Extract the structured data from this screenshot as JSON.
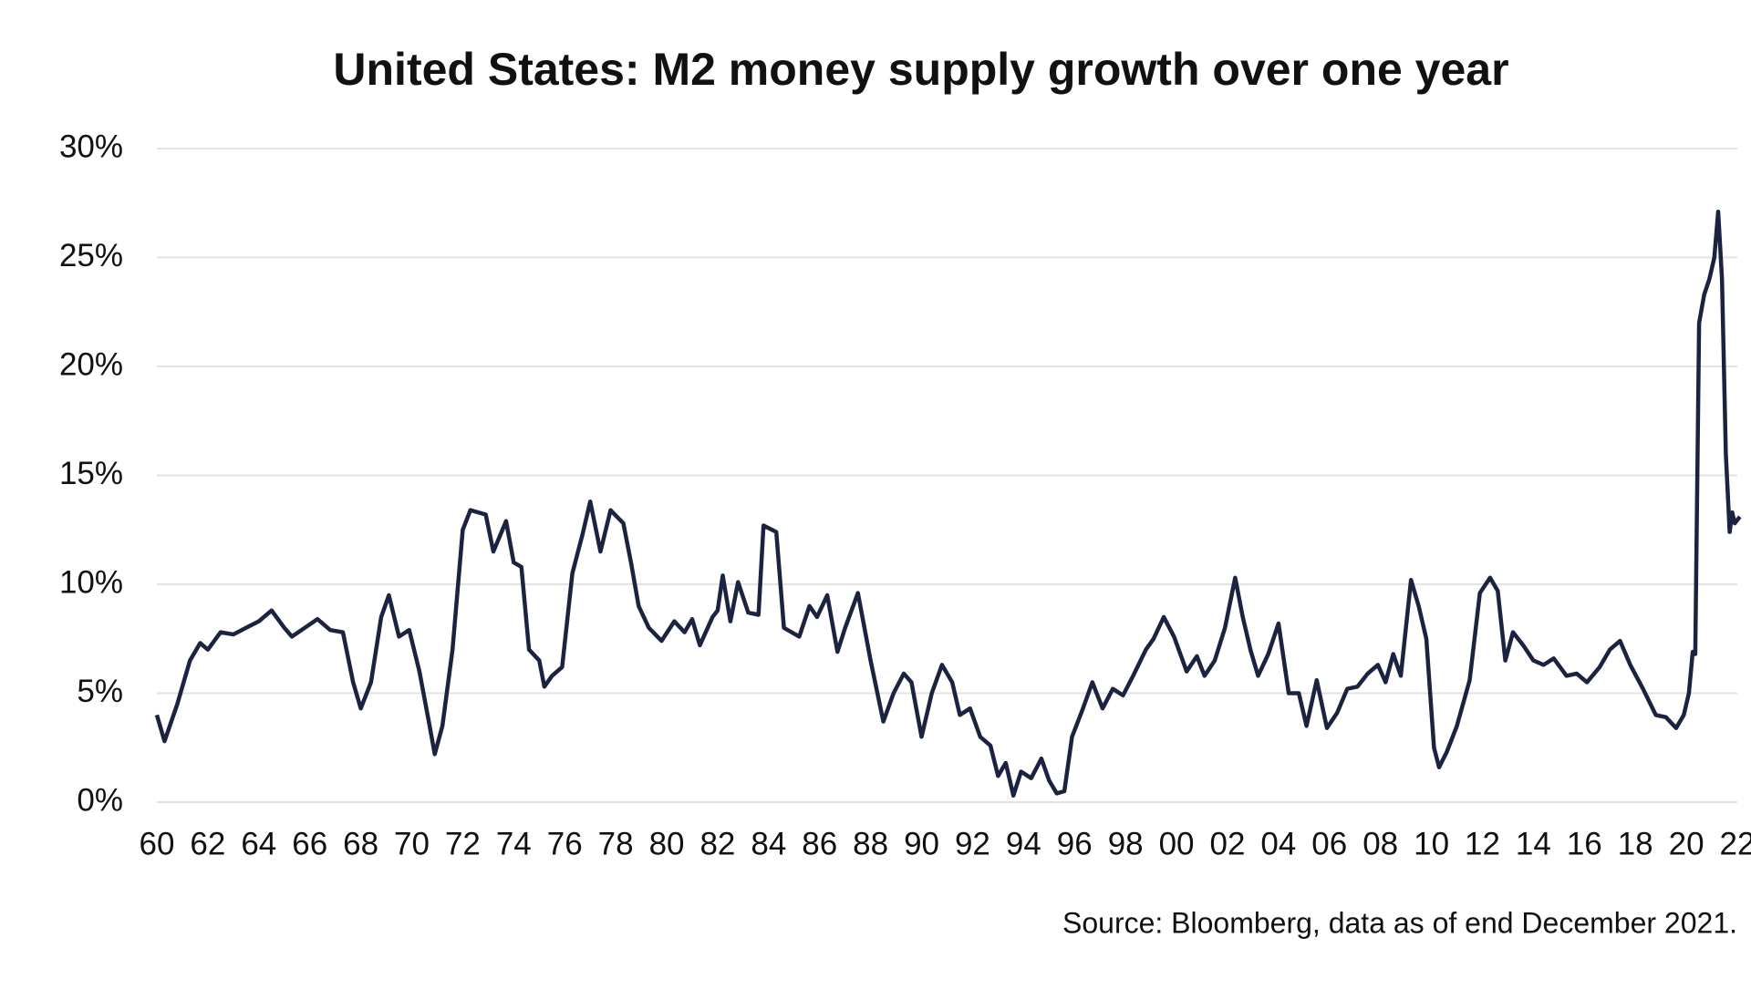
{
  "chart_data": {
    "type": "line",
    "title": "United States: M2 money supply growth over one year",
    "source": "Source: Bloomberg, data as of end December 2021.",
    "color": "#1c2340",
    "grid": true,
    "xlim": [
      1960,
      2022
    ],
    "ylim": [
      0,
      30
    ],
    "yticks": [
      {
        "value": 0,
        "label": "0%"
      },
      {
        "value": 5,
        "label": "5%"
      },
      {
        "value": 10,
        "label": "10%"
      },
      {
        "value": 15,
        "label": "15%"
      },
      {
        "value": 20,
        "label": "20%"
      },
      {
        "value": 25,
        "label": "25%"
      },
      {
        "value": 30,
        "label": "30%"
      }
    ],
    "xticks": [
      {
        "value": 1960,
        "label": "60"
      },
      {
        "value": 1962,
        "label": "62"
      },
      {
        "value": 1964,
        "label": "64"
      },
      {
        "value": 1966,
        "label": "66"
      },
      {
        "value": 1968,
        "label": "68"
      },
      {
        "value": 1970,
        "label": "70"
      },
      {
        "value": 1972,
        "label": "72"
      },
      {
        "value": 1974,
        "label": "74"
      },
      {
        "value": 1976,
        "label": "76"
      },
      {
        "value": 1978,
        "label": "78"
      },
      {
        "value": 1980,
        "label": "80"
      },
      {
        "value": 1982,
        "label": "82"
      },
      {
        "value": 1984,
        "label": "84"
      },
      {
        "value": 1986,
        "label": "86"
      },
      {
        "value": 1988,
        "label": "88"
      },
      {
        "value": 1990,
        "label": "90"
      },
      {
        "value": 1992,
        "label": "92"
      },
      {
        "value": 1994,
        "label": "94"
      },
      {
        "value": 1996,
        "label": "96"
      },
      {
        "value": 1998,
        "label": "98"
      },
      {
        "value": 2000,
        "label": "00"
      },
      {
        "value": 2002,
        "label": "02"
      },
      {
        "value": 2004,
        "label": "04"
      },
      {
        "value": 2006,
        "label": "06"
      },
      {
        "value": 2008,
        "label": "08"
      },
      {
        "value": 2010,
        "label": "10"
      },
      {
        "value": 2012,
        "label": "12"
      },
      {
        "value": 2014,
        "label": "14"
      },
      {
        "value": 2016,
        "label": "16"
      },
      {
        "value": 2018,
        "label": "18"
      },
      {
        "value": 2020,
        "label": "20"
      },
      {
        "value": 2022,
        "label": "22"
      }
    ],
    "x": [
      1960.0,
      1960.3,
      1960.8,
      1961.3,
      1961.7,
      1962.0,
      1962.5,
      1963.0,
      1963.5,
      1964.0,
      1964.5,
      1965.0,
      1965.3,
      1965.8,
      1966.3,
      1966.8,
      1967.3,
      1967.7,
      1968.0,
      1968.4,
      1968.8,
      1969.1,
      1969.5,
      1969.9,
      1970.3,
      1970.7,
      1970.9,
      1971.2,
      1971.6,
      1972.0,
      1972.3,
      1972.9,
      1973.2,
      1973.7,
      1974.0,
      1974.3,
      1974.6,
      1975.0,
      1975.2,
      1975.5,
      1975.9,
      1976.3,
      1976.7,
      1977.0,
      1977.4,
      1977.8,
      1978.3,
      1978.6,
      1978.9,
      1979.3,
      1979.8,
      1980.3,
      1980.7,
      1981.0,
      1981.3,
      1981.8,
      1982.0,
      1982.2,
      1982.5,
      1982.8,
      1983.2,
      1983.6,
      1983.8,
      1984.3,
      1984.6,
      1985.2,
      1985.6,
      1985.9,
      1986.3,
      1986.7,
      1987.0,
      1987.5,
      1988.0,
      1988.5,
      1988.9,
      1989.3,
      1989.6,
      1990.0,
      1990.4,
      1990.8,
      1991.2,
      1991.5,
      1991.9,
      1992.3,
      1992.7,
      1993.0,
      1993.3,
      1993.6,
      1993.9,
      1994.3,
      1994.7,
      1995.0,
      1995.3,
      1995.6,
      1995.9,
      1996.3,
      1996.7,
      1997.1,
      1997.5,
      1997.9,
      1998.3,
      1998.8,
      1999.1,
      1999.5,
      1999.9,
      2000.4,
      2000.8,
      2001.1,
      2001.5,
      2001.9,
      2002.3,
      2002.6,
      2002.9,
      2003.2,
      2003.6,
      2004.0,
      2004.4,
      2004.8,
      2005.1,
      2005.5,
      2005.9,
      2006.3,
      2006.7,
      2007.1,
      2007.5,
      2007.9,
      2008.2,
      2008.5,
      2008.8,
      2009.2,
      2009.5,
      2009.8,
      2010.1,
      2010.3,
      2010.6,
      2011.0,
      2011.5,
      2011.9,
      2012.3,
      2012.6,
      2012.9,
      2013.2,
      2013.6,
      2014.0,
      2014.4,
      2014.8,
      2015.3,
      2015.7,
      2016.1,
      2016.6,
      2017.0,
      2017.4,
      2017.8,
      2018.3,
      2018.8,
      2019.2,
      2019.6,
      2019.9,
      2020.1,
      2020.25,
      2020.35,
      2020.5,
      2020.7,
      2020.9,
      2021.1,
      2021.25,
      2021.4,
      2021.55,
      2021.7,
      2021.8,
      2021.9,
      2022.1
    ],
    "series": [
      {
        "values": [
          4.0,
          2.8,
          4.5,
          6.5,
          7.3,
          7.0,
          7.8,
          7.7,
          8.0,
          8.3,
          8.8,
          8.0,
          7.6,
          8.0,
          8.4,
          7.9,
          7.8,
          5.5,
          4.3,
          5.5,
          8.5,
          9.5,
          7.6,
          7.9,
          6.0,
          3.5,
          2.2,
          3.5,
          7.0,
          12.5,
          13.4,
          13.2,
          11.5,
          12.9,
          11.0,
          10.8,
          7.0,
          6.5,
          5.3,
          5.8,
          6.2,
          10.5,
          12.3,
          13.8,
          11.5,
          13.4,
          12.8,
          11.0,
          9.0,
          8.0,
          7.4,
          8.3,
          7.8,
          8.4,
          7.2,
          8.5,
          8.8,
          10.4,
          8.3,
          10.1,
          8.7,
          8.6,
          12.7,
          12.4,
          8.0,
          7.6,
          9.0,
          8.5,
          9.5,
          6.9,
          8.0,
          9.6,
          6.5,
          3.7,
          5.0,
          5.9,
          5.5,
          3.0,
          5.0,
          6.3,
          5.5,
          4.0,
          4.3,
          3.0,
          2.6,
          1.2,
          1.8,
          0.3,
          1.4,
          1.1,
          2.0,
          1.0,
          0.4,
          0.5,
          3.0,
          4.2,
          5.5,
          4.3,
          5.2,
          4.9,
          5.8,
          7.0,
          7.5,
          8.5,
          7.6,
          6.0,
          6.7,
          5.8,
          6.5,
          8.0,
          10.3,
          8.5,
          7.0,
          5.8,
          6.8,
          8.2,
          5.0,
          5.0,
          3.5,
          5.6,
          3.4,
          4.1,
          5.2,
          5.3,
          5.9,
          6.3,
          5.5,
          6.8,
          5.8,
          10.2,
          9.0,
          7.5,
          2.5,
          1.6,
          2.3,
          3.5,
          5.6,
          9.6,
          10.3,
          9.7,
          6.5,
          7.8,
          7.2,
          6.5,
          6.3,
          6.6,
          5.8,
          5.9,
          5.5,
          6.2,
          7.0,
          7.4,
          6.3,
          5.2,
          4.0,
          3.9,
          3.4,
          4.0,
          5.0,
          6.9,
          6.8,
          22.0,
          23.3,
          24.0,
          25.0,
          27.1,
          24.0,
          16.0,
          12.4,
          13.3,
          12.8,
          13.1
        ]
      }
    ]
  }
}
